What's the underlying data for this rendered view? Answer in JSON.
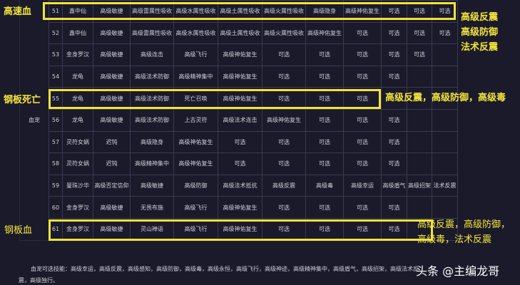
{
  "side_label": "血宠",
  "rows": [
    [
      "51",
      "鑫中仙",
      "高级敏捷",
      "高级雷属性吸收",
      "高级水属性吸收",
      "高级土属性吸收",
      "高级火属性吸收",
      "高级隐身",
      "高级神佑复生",
      "可选",
      "可选",
      "可选"
    ],
    [
      "52",
      "鑫中仙",
      "高级敏捷",
      "高级雷属性吸收",
      "高级水属性吸收",
      "高级土属性吸收",
      "高级火属性吸收",
      "高级神佑复生",
      "可选",
      "可选",
      "可选",
      "可选"
    ],
    [
      "53",
      "金身罗汉",
      "高级敏捷",
      "高级连击",
      "高级飞行",
      "高级神佑复生",
      "可选",
      "可选",
      "可选",
      "可选",
      "可选",
      ""
    ],
    [
      "54",
      "龙龟",
      "高级敏捷",
      "高级法术防御",
      "高级精神集中",
      "高级神佑复生",
      "可选",
      "可选",
      "可选",
      "可选",
      "",
      ""
    ],
    [
      "55",
      "龙龟",
      "高级敏捷",
      "高级法术防御",
      "死亡召唤",
      "高级神佑复生",
      "可选",
      "可选",
      "可选",
      "",
      "",
      ""
    ],
    [
      "56",
      "龙龟",
      "高级敏捷",
      "高级法术防御",
      "上古灵符",
      "高级法术连击",
      "高级神佑复生",
      "可选",
      "可选",
      "可选",
      "",
      ""
    ],
    [
      "57",
      "灵符女娲",
      "迟钝",
      "高级隐身",
      "高级神佑复生",
      "可选",
      "可选",
      "可选",
      "可选",
      "可选",
      "",
      ""
    ],
    [
      "58",
      "灵符女娲",
      "迟钝",
      "高级精神集中",
      "高级神佑复生",
      "可选",
      "可选",
      "可选",
      "可选",
      "可选",
      "",
      ""
    ],
    [
      "59",
      "曼珠沙华",
      "高级否定信仰",
      "高级敏捷",
      "高级防御",
      "高级法术抵抗",
      "高级反震",
      "高级毒",
      "高级幸运",
      "高级盾气",
      "高级招架",
      "法术反震"
    ],
    [
      "60",
      "金身罗汉",
      "高级敏捷",
      "无畏布施",
      "高级飞行",
      "高级神佑复生",
      "可选",
      "可选",
      "可选",
      "可选",
      "",
      ""
    ],
    [
      "61",
      "金身罗汉",
      "高级敏捷",
      "灵山禅语",
      "高级飞行",
      "高级神佑复生",
      "可选",
      "可选",
      "可选",
      "可选",
      "",
      ""
    ]
  ],
  "annotations": {
    "r51_left": "高速血",
    "r51_right": [
      "高级反震",
      "高级防御",
      "法术反震"
    ],
    "r55_left": "钢板死亡",
    "r55_right": "高级反震，高级防御，高级毒",
    "r61_left": "钢板血",
    "r61_right": [
      "高级反震，高级防御，",
      "高级毒，法术反震"
    ]
  },
  "footer": {
    "line1": "血宠可选技能：高级幸运，高级反震，高级感知，高级防御，高级毒，高级永恒，高级飞行，高级神迹，高级精神集中，高级盾气，高级招架，高级法术反",
    "line2": "震，高级独行。"
  },
  "watermark": "头条 @主编龙哥",
  "colors": {
    "highlight": "#f2e23a",
    "background": "#1a1a2a"
  }
}
